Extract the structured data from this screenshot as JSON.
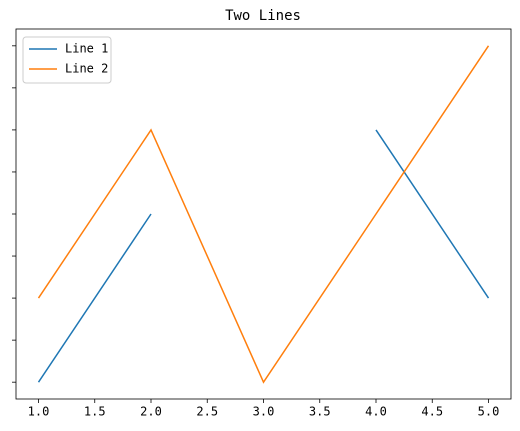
{
  "chart_data": {
    "type": "line",
    "title": "Two Lines",
    "x": [
      1,
      2,
      3,
      4,
      5
    ],
    "series": [
      {
        "name": "Line 1",
        "color": "#1f77b4",
        "values": [
          1,
          5,
          null,
          7,
          3
        ]
      },
      {
        "name": "Line 2",
        "color": "#ff7f0e",
        "values": [
          3,
          7,
          1,
          5,
          9
        ]
      }
    ],
    "xlim": [
      0.8,
      5.2
    ],
    "xticks": [
      {
        "value": 1,
        "label": "1.0"
      },
      {
        "value": 1.5,
        "label": "1.5"
      },
      {
        "value": 2,
        "label": "2.0"
      },
      {
        "value": 2.5,
        "label": "2.5"
      },
      {
        "value": 3,
        "label": "3.0"
      },
      {
        "value": 3.5,
        "label": "3.5"
      },
      {
        "value": 4,
        "label": "4.0"
      },
      {
        "value": 4.5,
        "label": "4.5"
      },
      {
        "value": 5,
        "label": "5.0"
      }
    ],
    "ylim": [
      0.6,
      9.4
    ],
    "yticks": [
      1,
      2,
      3,
      4,
      5,
      6,
      7,
      8,
      9
    ],
    "legend": "upper left"
  }
}
